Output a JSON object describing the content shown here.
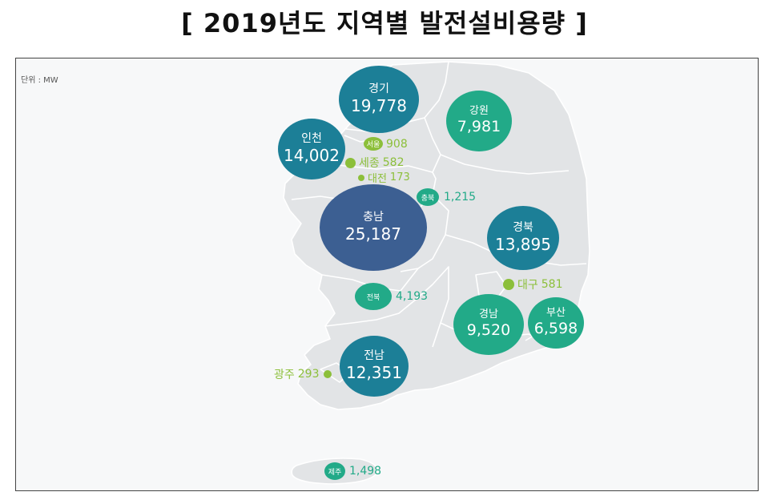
{
  "title": "[ 2019년도  지역별  발전설비용량 ]",
  "unit_label": "단위 : MW",
  "colors": {
    "map_fill": "#e2e4e6",
    "map_border": "#ffffff",
    "navy": "#3c5f92",
    "teal": "#1c7f97",
    "green": "#22aa88",
    "lime": "#8cbf3a"
  },
  "regions": {
    "gyeonggi": {
      "name": "경기",
      "value": "19,778"
    },
    "gangwon": {
      "name": "강원",
      "value": "7,981"
    },
    "incheon": {
      "name": "인천",
      "value": "14,002"
    },
    "seoul": {
      "name": "서울",
      "value": "908"
    },
    "sejong": {
      "name": "세종",
      "value": "582"
    },
    "daejeon": {
      "name": "대전",
      "value": "173"
    },
    "chungbuk": {
      "name": "충북",
      "value": "1,215"
    },
    "chungnam": {
      "name": "충남",
      "value": "25,187"
    },
    "gyeongbuk": {
      "name": "경북",
      "value": "13,895"
    },
    "daegu": {
      "name": "대구",
      "value": "581"
    },
    "jeonbuk": {
      "name": "전북",
      "value": "4,193"
    },
    "gyeongnam": {
      "name": "경남",
      "value": "9,520"
    },
    "busan": {
      "name": "부산",
      "value": "6,598"
    },
    "jeonnam": {
      "name": "전남",
      "value": "12,351"
    },
    "gwangju": {
      "name": "광주",
      "value": "293"
    },
    "jeju": {
      "name": "제주",
      "value": "1,498"
    }
  }
}
